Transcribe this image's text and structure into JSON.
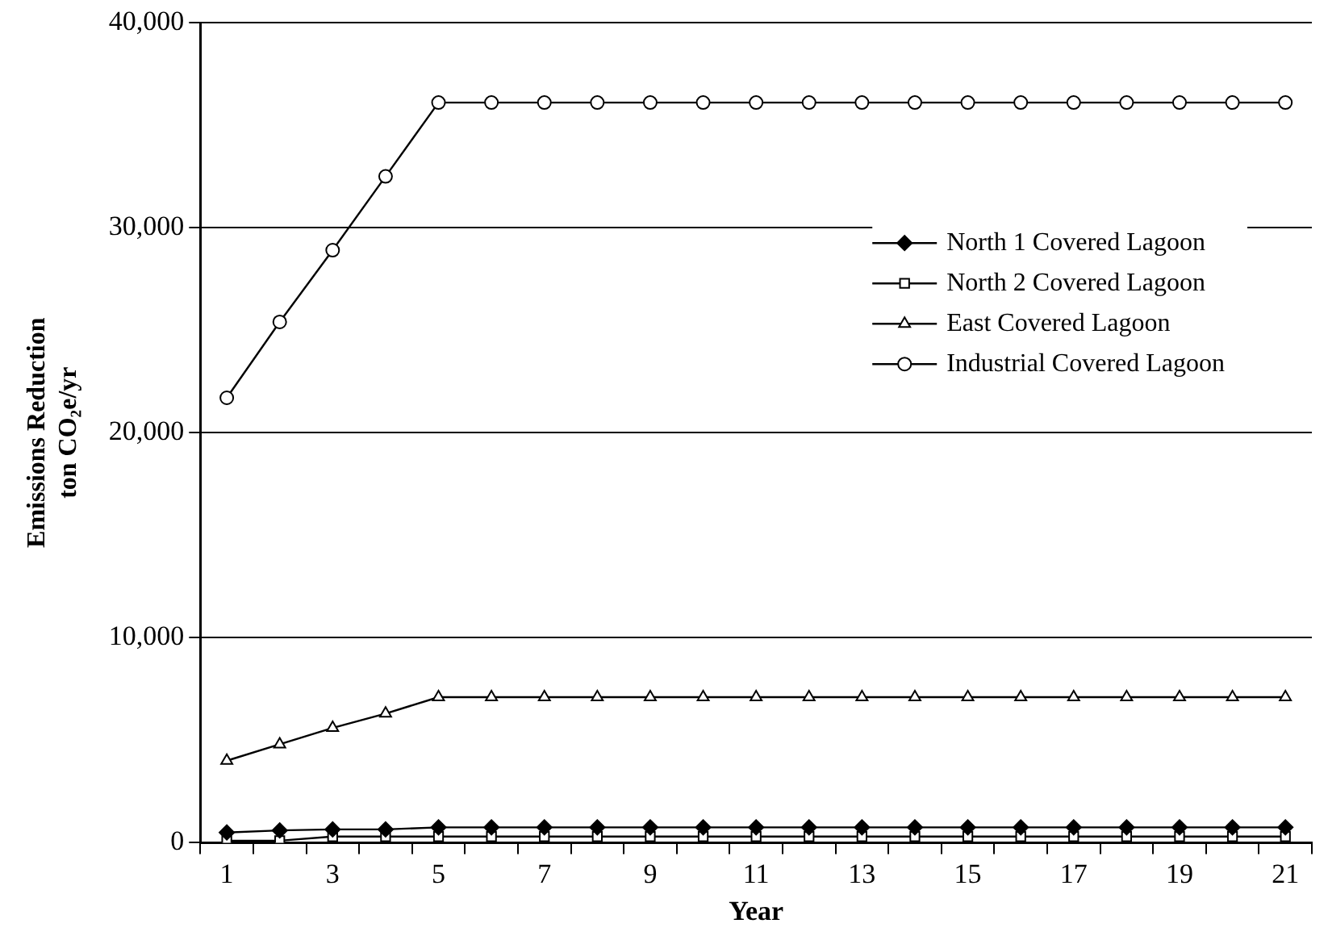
{
  "chart_data": {
    "type": "line",
    "xlabel": "Year",
    "ylabel": "Emissions Reduction\nton CO₂e/yr",
    "x": [
      1,
      2,
      3,
      4,
      5,
      6,
      7,
      8,
      9,
      10,
      11,
      12,
      13,
      14,
      15,
      16,
      17,
      18,
      19,
      20,
      21
    ],
    "xlim": [
      0.5,
      21.5
    ],
    "xticks": [
      {
        "value": 0.5,
        "label": null
      },
      1,
      {
        "value": 1.5,
        "label": null
      },
      {
        "value": 2.5,
        "label": null
      },
      3,
      {
        "value": 3.5,
        "label": null
      },
      {
        "value": 4.5,
        "label": null
      },
      5,
      {
        "value": 5.5,
        "label": null
      },
      {
        "value": 6.5,
        "label": null
      },
      7,
      {
        "value": 7.5,
        "label": null
      },
      {
        "value": 8.5,
        "label": null
      },
      9,
      {
        "value": 9.5,
        "label": null
      },
      {
        "value": 10.5,
        "label": null
      },
      11,
      {
        "value": 11.5,
        "label": null
      },
      {
        "value": 12.5,
        "label": null
      },
      13,
      {
        "value": 13.5,
        "label": null
      },
      {
        "value": 14.5,
        "label": null
      },
      15,
      {
        "value": 15.5,
        "label": null
      },
      {
        "value": 16.5,
        "label": null
      },
      17,
      {
        "value": 17.5,
        "label": null
      },
      {
        "value": 18.5,
        "label": null
      },
      19,
      {
        "value": 19.5,
        "label": null
      },
      {
        "value": 20.5,
        "label": null
      },
      21,
      {
        "value": 21.5,
        "label": null
      }
    ],
    "ylim": [
      0,
      40000
    ],
    "yticks": [
      {
        "value": 0,
        "label": "0"
      },
      {
        "value": 10000,
        "label": "10,000"
      },
      {
        "value": 20000,
        "label": "20,000"
      },
      {
        "value": 30000,
        "label": "30,000"
      },
      {
        "value": 40000,
        "label": "40,000"
      }
    ],
    "grid": "y",
    "legend": "center right",
    "line_style": "solid",
    "series": [
      {
        "name": "North 1 Covered Lagoon",
        "color": "#000000",
        "marker": "diamond",
        "values": [
          500,
          600,
          650,
          650,
          750,
          750,
          750,
          750,
          750,
          750,
          750,
          750,
          750,
          750,
          750,
          750,
          750,
          750,
          750,
          750,
          750
        ]
      },
      {
        "name": "North 2 Covered Lagoon",
        "color": "#000000",
        "marker": "square",
        "values": [
          100,
          100,
          300,
          300,
          300,
          300,
          300,
          300,
          300,
          300,
          300,
          300,
          300,
          300,
          300,
          300,
          300,
          300,
          300,
          300,
          300
        ]
      },
      {
        "name": "East Covered Lagoon",
        "color": "#000000",
        "marker": "triangle",
        "values": [
          4000,
          4800,
          5600,
          6300,
          7100,
          7100,
          7100,
          7100,
          7100,
          7100,
          7100,
          7100,
          7100,
          7100,
          7100,
          7100,
          7100,
          7100,
          7100,
          7100,
          7100
        ]
      },
      {
        "name": "Industrial Covered Lagoon",
        "color": "#000000",
        "marker": "circle",
        "values": [
          21700,
          25400,
          28900,
          32500,
          36100,
          36100,
          36100,
          36100,
          36100,
          36100,
          36100,
          36100,
          36100,
          36100,
          36100,
          36100,
          36100,
          36100,
          36100,
          36100,
          36100
        ]
      }
    ]
  }
}
